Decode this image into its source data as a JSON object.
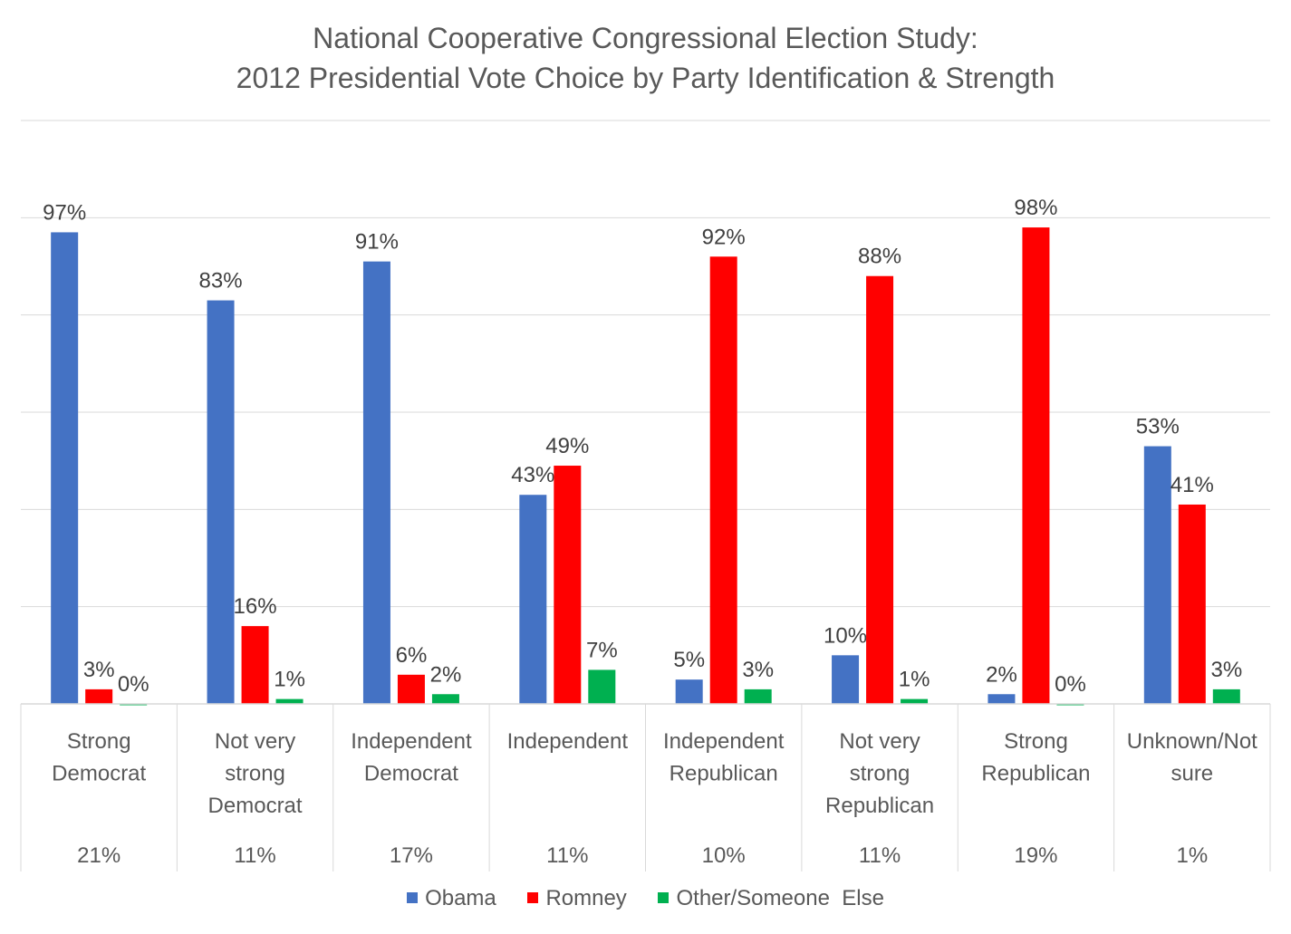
{
  "chart_data": {
    "type": "bar",
    "title": [
      "National Cooperative Congressional Election Study:",
      "2012 Presidential Vote Choice by Party Identification & Strength"
    ],
    "categories": [
      [
        "Strong",
        "Democrat"
      ],
      [
        "Not very",
        "strong",
        "Democrat"
      ],
      [
        "Independent",
        "Democrat"
      ],
      [
        "Independent"
      ],
      [
        "Independent",
        "Republican"
      ],
      [
        "Not very",
        "strong",
        "Republican"
      ],
      [
        "Strong",
        "Republican"
      ],
      [
        "Unknown/Not",
        "sure"
      ]
    ],
    "category_shares": [
      "21%",
      "11%",
      "17%",
      "11%",
      "10%",
      "11%",
      "19%",
      "1%"
    ],
    "series": [
      {
        "name": "Obama",
        "color": "#4472C4",
        "values": [
          97,
          83,
          91,
          43,
          5,
          10,
          2,
          53
        ]
      },
      {
        "name": "Romney",
        "color": "#FF0000",
        "values": [
          3,
          16,
          6,
          49,
          92,
          88,
          98,
          41
        ]
      },
      {
        "name": "Other/Someone  Else",
        "color": "#00B050",
        "values": [
          0,
          1,
          2,
          7,
          3,
          1,
          0,
          3
        ]
      }
    ],
    "value_suffix": "%",
    "ylim": [
      0,
      120
    ],
    "grid": true,
    "legend_position": "bottom"
  }
}
